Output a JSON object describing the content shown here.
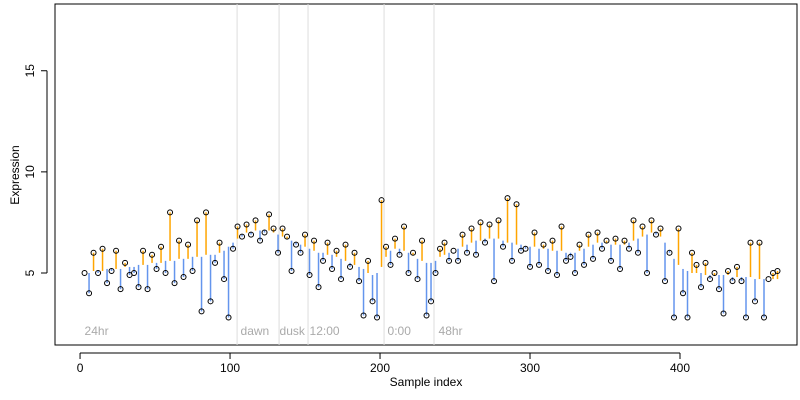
{
  "chart_data": {
    "type": "residual-scatter",
    "xlabel": "Sample index",
    "ylabel": "Expression",
    "xlim": [
      -16.7,
      478
    ],
    "ylim": [
      1.44,
      18.3
    ],
    "xticks": [
      0,
      100,
      200,
      300,
      400
    ],
    "yticks": [
      5,
      10,
      15
    ],
    "point_color": "#000000",
    "above_color": "orange",
    "below_color": "#6495ed",
    "vline_color": "#dddddd",
    "vlines": [
      104.7,
      132.7,
      152,
      202.7,
      236
    ],
    "annotation_y": 2.1,
    "annotations": [
      {
        "label": "24hr",
        "x": 3
      },
      {
        "label": "dawn",
        "x": 107
      },
      {
        "label": "dusk",
        "x": 133
      },
      {
        "label": "12:00",
        "x": 153
      },
      {
        "label": "0:00",
        "x": 205
      },
      {
        "label": "48hr",
        "x": 239
      }
    ],
    "x": [
      3,
      6,
      9,
      12,
      15,
      18,
      21,
      24,
      27,
      30,
      33,
      36,
      39,
      42,
      45,
      48,
      51,
      54,
      57,
      60,
      63,
      66,
      69,
      72,
      75,
      78,
      81,
      84,
      87,
      90,
      93,
      96,
      99,
      102,
      105,
      108,
      111,
      114,
      117,
      120,
      123,
      126,
      129,
      132,
      135,
      138,
      141,
      144,
      147,
      150,
      153,
      156,
      159,
      162,
      165,
      168,
      171,
      174,
      177,
      180,
      183,
      186,
      189,
      192,
      195,
      198,
      201,
      204,
      207,
      210,
      213,
      216,
      219,
      222,
      225,
      228,
      231,
      234,
      237,
      240,
      243,
      246,
      249,
      252,
      255,
      258,
      261,
      264,
      267,
      270,
      273,
      276,
      279,
      282,
      285,
      288,
      291,
      294,
      297,
      300,
      303,
      306,
      309,
      312,
      315,
      318,
      321,
      324,
      327,
      330,
      333,
      336,
      339,
      342,
      345,
      348,
      351,
      354,
      357,
      360,
      363,
      366,
      369,
      372,
      375,
      378,
      381,
      384,
      387,
      390,
      393,
      396,
      399,
      402,
      405,
      408,
      411,
      414,
      417,
      420,
      423,
      426,
      429,
      432,
      435,
      438,
      441,
      444,
      447,
      450,
      453,
      456,
      459,
      462,
      465
    ],
    "values": [
      5.0,
      4.0,
      6.0,
      5.0,
      6.2,
      4.5,
      5.1,
      6.1,
      4.2,
      5.5,
      4.9,
      5.0,
      4.3,
      6.1,
      4.2,
      5.9,
      5.2,
      6.3,
      5.0,
      8.0,
      4.5,
      6.6,
      4.8,
      6.4,
      5.1,
      7.6,
      3.1,
      8.0,
      3.6,
      5.5,
      6.5,
      4.7,
      2.8,
      6.2,
      7.3,
      6.8,
      7.4,
      6.9,
      7.6,
      6.6,
      7.0,
      7.9,
      7.2,
      6.0,
      7.2,
      6.8,
      5.1,
      6.4,
      6.0,
      6.9,
      4.9,
      6.6,
      4.3,
      5.6,
      6.5,
      5.2,
      6.1,
      4.7,
      6.4,
      5.3,
      6.0,
      4.6,
      2.9,
      5.6,
      3.6,
      2.8,
      8.6,
      6.3,
      5.4,
      6.7,
      5.9,
      7.3,
      5.0,
      6.0,
      4.7,
      6.6,
      2.9,
      3.6,
      5.0,
      6.2,
      6.5,
      5.6,
      6.1,
      5.6,
      6.9,
      6.0,
      7.2,
      5.9,
      7.5,
      6.5,
      7.4,
      4.6,
      7.6,
      6.3,
      8.7,
      5.6,
      8.4,
      6.1,
      6.2,
      5.3,
      7.0,
      5.4,
      6.4,
      5.1,
      6.6,
      4.9,
      7.3,
      5.6,
      5.8,
      5.0,
      6.4,
      5.4,
      6.9,
      5.7,
      7.0,
      6.2,
      6.6,
      5.6,
      6.7,
      5.2,
      6.6,
      6.2,
      7.6,
      6.0,
      7.3,
      5.0,
      7.6,
      6.9,
      7.2,
      4.6,
      6.0,
      2.8,
      7.2,
      4.0,
      2.8,
      6.0,
      5.4,
      4.3,
      5.5,
      4.7,
      5.0,
      4.2,
      3.0,
      5.1,
      4.6,
      5.3,
      4.6,
      2.8,
      6.5,
      3.6,
      6.5,
      2.8,
      4.7,
      5.0,
      5.1
    ],
    "fit": [
      5.0,
      5.0,
      5.1,
      5.1,
      5.1,
      5.2,
      5.2,
      5.2,
      5.2,
      5.3,
      5.3,
      5.3,
      5.4,
      5.4,
      5.4,
      5.5,
      5.5,
      5.5,
      5.6,
      5.6,
      5.6,
      5.7,
      5.7,
      5.7,
      5.8,
      5.8,
      5.8,
      5.9,
      5.9,
      5.9,
      6.0,
      6.1,
      6.3,
      6.5,
      6.7,
      6.9,
      7.0,
      7.0,
      7.1,
      7.1,
      7.1,
      7.1,
      7.0,
      6.9,
      6.8,
      6.7,
      6.6,
      6.5,
      6.4,
      6.3,
      6.2,
      6.1,
      6.0,
      6.0,
      5.9,
      5.9,
      5.8,
      5.7,
      5.6,
      5.5,
      5.4,
      5.3,
      5.2,
      5.0,
      4.9,
      5.0,
      5.3,
      5.8,
      6.1,
      6.2,
      6.2,
      6.1,
      6.0,
      5.9,
      5.7,
      5.6,
      5.5,
      5.5,
      5.6,
      5.8,
      5.9,
      6.0,
      6.1,
      6.2,
      6.3,
      6.4,
      6.5,
      6.6,
      6.6,
      6.7,
      6.7,
      6.7,
      6.7,
      6.6,
      6.5,
      6.5,
      6.4,
      6.4,
      6.3,
      6.3,
      6.3,
      6.2,
      6.2,
      6.2,
      6.1,
      6.1,
      6.1,
      6.0,
      6.0,
      6.0,
      6.1,
      6.2,
      6.3,
      6.4,
      6.5,
      6.5,
      6.5,
      6.4,
      6.4,
      6.4,
      6.4,
      6.5,
      6.6,
      6.7,
      6.8,
      6.9,
      7.0,
      7.0,
      6.8,
      6.5,
      6.1,
      5.7,
      5.4,
      5.2,
      5.1,
      5.0,
      5.0,
      5.0,
      4.9,
      4.9,
      4.9,
      4.9,
      4.9,
      4.9,
      4.8,
      4.8,
      4.8,
      4.8,
      4.8,
      4.7,
      4.7,
      4.7,
      4.7,
      4.7,
      4.7
    ]
  }
}
